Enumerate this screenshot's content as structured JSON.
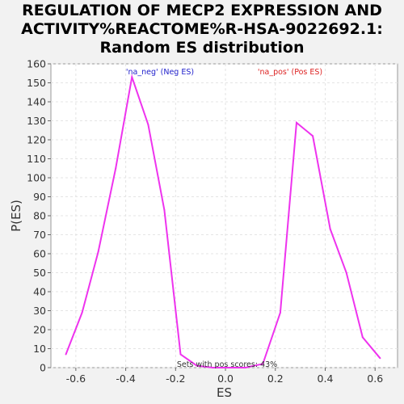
{
  "title_lines": [
    "REGULATION OF MECP2 EXPRESSION AND",
    "ACTIVITY%REACTOME%R-HSA-9022692.1:",
    "Random ES distribution"
  ],
  "colors": {
    "line": "#ee33ee",
    "neg_label": "#2222cc",
    "pos_label": "#dd2222",
    "plot_bg": "#ffffff",
    "grid": "#e4e4e4"
  },
  "chart_data": {
    "type": "line",
    "title": "REGULATION OF MECP2 EXPRESSION AND ACTIVITY%REACTOME%R-HSA-9022692.1: Random ES distribution",
    "xlabel": "ES",
    "ylabel": "P(ES)",
    "xlim": [
      -0.7,
      0.69
    ],
    "ylim": [
      0,
      160
    ],
    "xticks": [
      "-0.6",
      "-0.4",
      "-0.2",
      "0.0",
      "0.2",
      "0.4",
      "0.6"
    ],
    "yticks": [
      "0",
      "10",
      "20",
      "30",
      "40",
      "50",
      "60",
      "70",
      "80",
      "90",
      "100",
      "110",
      "120",
      "130",
      "140",
      "150",
      "160"
    ],
    "grid": true,
    "legend": [
      {
        "text": "'na_neg' (Neg ES)",
        "position": "top-left"
      },
      {
        "text": "'na_pos' (Pos ES)",
        "position": "top-right"
      }
    ],
    "annotation": "Sets with pos scores: 43%",
    "series": [
      {
        "x": [
          -0.64,
          -0.575,
          -0.51,
          -0.44,
          -0.375,
          -0.31,
          -0.245,
          -0.18,
          -0.115,
          -0.05,
          0.015,
          0.08,
          0.15,
          0.22,
          0.285,
          0.35,
          0.42,
          0.485,
          0.55,
          0.62
        ],
        "y": [
          7,
          29,
          61,
          105,
          153,
          128,
          83,
          7,
          1,
          0,
          0,
          0,
          2,
          29,
          129,
          122,
          73,
          50,
          16,
          5
        ]
      }
    ]
  }
}
